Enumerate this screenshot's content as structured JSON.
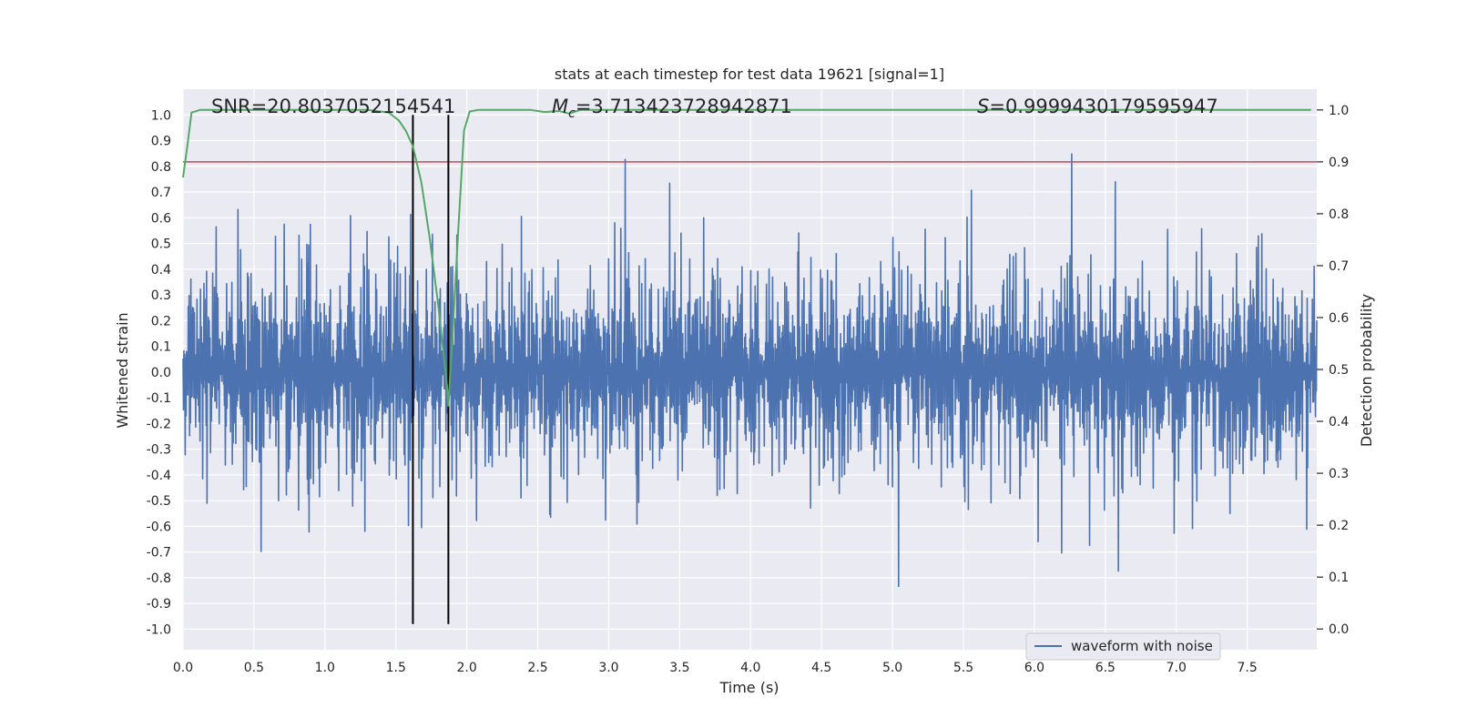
{
  "chart_data": {
    "type": "line",
    "title": "stats at each timestep for test data 19621 [signal=1]",
    "xlabel": "Time (s)",
    "ylabel": "Whitened strain",
    "y2label": "Detection probability",
    "xlim": [
      0.0,
      7.99
    ],
    "ylim": [
      -1.08,
      1.1
    ],
    "y2lim": [
      -0.04,
      1.04
    ],
    "x_ticks": [
      "0.0",
      "0.5",
      "1.0",
      "1.5",
      "2.0",
      "2.5",
      "3.0",
      "3.5",
      "4.0",
      "4.5",
      "5.0",
      "5.5",
      "6.0",
      "6.5",
      "7.0",
      "7.5"
    ],
    "x_tick_values": [
      0.0,
      0.5,
      1.0,
      1.5,
      2.0,
      2.5,
      3.0,
      3.5,
      4.0,
      4.5,
      5.0,
      5.5,
      6.0,
      6.5,
      7.0,
      7.5
    ],
    "y_ticks": [
      "1.0",
      "0.9",
      "0.8",
      "0.7",
      "0.6",
      "0.5",
      "0.4",
      "0.3",
      "0.2",
      "0.1",
      "0.0",
      "-0.1",
      "-0.2",
      "-0.3",
      "-0.4",
      "-0.5",
      "-0.6",
      "-0.7",
      "-0.8",
      "-0.9",
      "-1.0"
    ],
    "y_tick_values": [
      1.0,
      0.9,
      0.8,
      0.7,
      0.6,
      0.5,
      0.4,
      0.3,
      0.2,
      0.1,
      0.0,
      -0.1,
      -0.2,
      -0.3,
      -0.4,
      -0.5,
      -0.6,
      -0.7,
      -0.8,
      -0.9,
      -1.0
    ],
    "y2_ticks": [
      "1.0",
      "0.9",
      "0.8",
      "0.7",
      "0.6",
      "0.5",
      "0.4",
      "0.3",
      "0.2",
      "0.1",
      "0.0"
    ],
    "y2_tick_values": [
      1.0,
      0.9,
      0.8,
      0.7,
      0.6,
      0.5,
      0.4,
      0.3,
      0.2,
      0.1,
      0.0
    ],
    "annotations": {
      "snr": "SNR=20.8037052154541",
      "mc_symbol": "M",
      "mc_subscript": "c",
      "mc_value": "=3.713423728942871",
      "s_symbol": "S",
      "s_value": "=0.9999430179595947"
    },
    "threshold": {
      "value": 0.9,
      "axis": "y2",
      "color": "#c44e52"
    },
    "signal_window": {
      "start": 1.62,
      "end": 1.87,
      "ymin": -0.98,
      "ymax": 1.0,
      "color": "#000000"
    },
    "series": [
      {
        "name": "waveform with noise",
        "axis": "y",
        "color": "#4c72b0",
        "style": "dense noise, body about ±0.55, peaks up to about ±1.0"
      },
      {
        "name": "detection probability",
        "axis": "y2",
        "color": "#55a868",
        "x": [
          0.0,
          0.03,
          0.06,
          0.12,
          0.3,
          0.8,
          1.3,
          1.45,
          1.52,
          1.57,
          1.62,
          1.68,
          1.74,
          1.8,
          1.86,
          1.87,
          1.9,
          1.94,
          1.98,
          2.02,
          2.08,
          2.2,
          2.45,
          2.55,
          2.65,
          2.72,
          2.8,
          3.0,
          4.0,
          5.0,
          6.0,
          7.0,
          7.95
        ],
        "values": [
          0.87,
          0.93,
          0.995,
          1.0,
          1.0,
          1.0,
          1.0,
          0.995,
          0.98,
          0.96,
          0.93,
          0.86,
          0.75,
          0.62,
          0.47,
          0.43,
          0.57,
          0.77,
          0.96,
          0.997,
          1.0,
          1.0,
          1.0,
          0.996,
          0.998,
          0.993,
          1.0,
          1.0,
          1.0,
          1.0,
          1.0,
          1.0,
          1.0
        ]
      }
    ],
    "legend": {
      "label": "waveform with noise",
      "placement": "lower-right"
    },
    "colors": {
      "background": "#eaeaf2",
      "grid": "#ffffff"
    }
  }
}
